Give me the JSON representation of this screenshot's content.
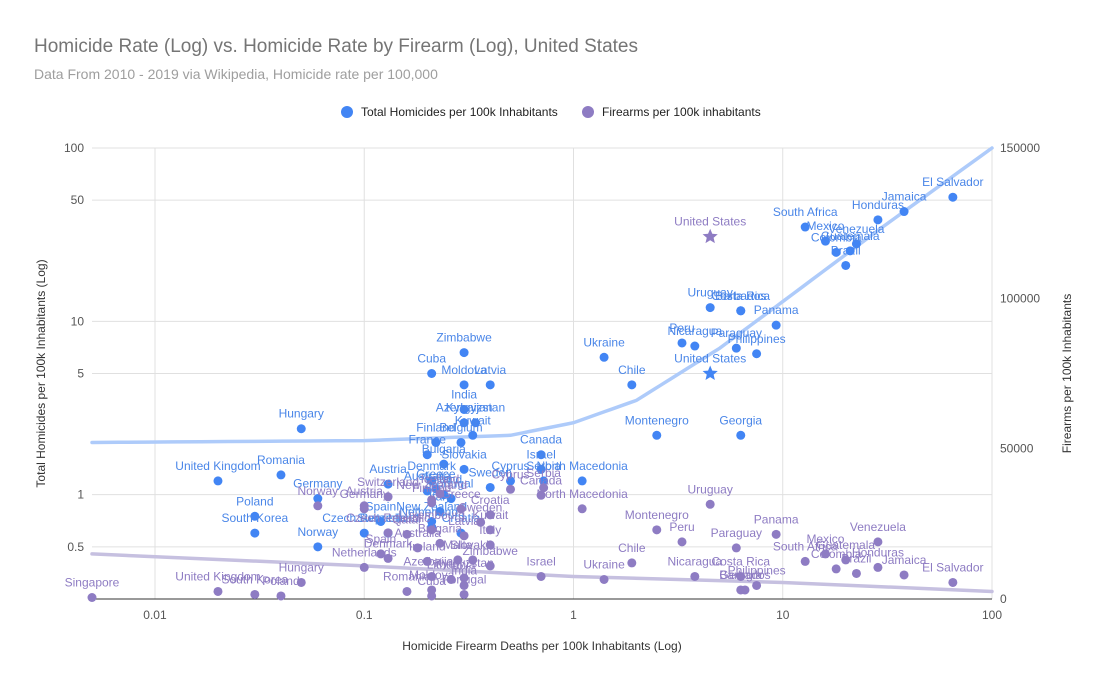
{
  "title": "Homicide Rate (Log) vs. Homicide Rate by Firearm (Log), United States",
  "subtitle": "Data From 2010 - 2019 via Wikipedia, Homicide rate per 100,000",
  "colors": {
    "total": "#4285f4",
    "firearms": "#8e7cc3",
    "label_total": "#4a86e8",
    "label_firearms": "#8e7cc3",
    "trend_total": "#aecbfa",
    "trend_firearms": "#c6c0e0",
    "grid": "#e0e0e0",
    "axis_text": "#555555"
  },
  "chart_data": {
    "type": "scatter",
    "title": "Homicide Rate (Log) vs. Homicide Rate by Firearm (Log), United States",
    "subtitle": "Data From 2010 - 2019 via Wikipedia, Homicide rate per 100,000",
    "xlabel": "Homicide Firearm Deaths per 100k Inhabitants (Log)",
    "ylabel": "Total Homicides per 100k Inhabitants (Log)",
    "y2label": "Firearms per 100k Inhabitants",
    "x_scale": "log",
    "y_scale": "log",
    "xlim": [
      0.005,
      100
    ],
    "ylim": [
      0.25,
      100
    ],
    "y2lim": [
      0,
      150000
    ],
    "x_ticks": [
      "0.01",
      "0.1",
      "1",
      "10",
      "100"
    ],
    "y_ticks": [
      "0.5",
      "1",
      "5",
      "10",
      "50",
      "100"
    ],
    "y2_ticks": [
      "0",
      "50000",
      "100000",
      "150000"
    ],
    "grid": true,
    "legend": "top",
    "series": [
      {
        "name": "Total Homicides per 100k Inhabitants",
        "axis": "left",
        "marker": "circle",
        "points": [
          {
            "label": "El Salvador",
            "x": 65,
            "y": 52
          },
          {
            "label": "Jamaica",
            "x": 38,
            "y": 43
          },
          {
            "label": "Honduras",
            "x": 28.5,
            "y": 38.5
          },
          {
            "label": "Venezuela",
            "x": 22.5,
            "y": 28
          },
          {
            "label": "Brazil",
            "x": 20,
            "y": 21
          },
          {
            "label": "Colombia",
            "x": 18,
            "y": 25
          },
          {
            "label": "Mexico",
            "x": 16,
            "y": 29
          },
          {
            "label": "South Africa",
            "x": 12.8,
            "y": 35
          },
          {
            "label": "Guatemala",
            "x": 21,
            "y": 25.5
          },
          {
            "label": "United States",
            "x": 4.5,
            "y": 5,
            "marker": "star"
          },
          {
            "label": "Uruguay",
            "x": 4.5,
            "y": 12
          },
          {
            "label": "Costa Rica",
            "x": 6.3,
            "y": 11.5
          },
          {
            "label": "Barbados",
            "x": 6.3,
            "y": 11.5
          },
          {
            "label": "Panama",
            "x": 9.3,
            "y": 9.5
          },
          {
            "label": "Peru",
            "x": 3.3,
            "y": 7.5
          },
          {
            "label": "Nicaragua",
            "x": 3.8,
            "y": 7.2
          },
          {
            "label": "Paraguay",
            "x": 6,
            "y": 7
          },
          {
            "label": "Philippines",
            "x": 7.5,
            "y": 6.5
          },
          {
            "label": "Ukraine",
            "x": 1.4,
            "y": 6.2
          },
          {
            "label": "Chile",
            "x": 1.9,
            "y": 4.3
          },
          {
            "label": "Montenegro",
            "x": 2.5,
            "y": 2.2
          },
          {
            "label": "Georgia",
            "x": 6.3,
            "y": 2.2
          },
          {
            "label": "Zimbabwe",
            "x": 0.3,
            "y": 6.6
          },
          {
            "label": "Cuba",
            "x": 0.21,
            "y": 5
          },
          {
            "label": "Moldova",
            "x": 0.3,
            "y": 4.3
          },
          {
            "label": "Latvia",
            "x": 0.4,
            "y": 4.3
          },
          {
            "label": "India",
            "x": 0.3,
            "y": 3.1
          },
          {
            "label": "Hungary",
            "x": 0.05,
            "y": 2.4
          },
          {
            "label": "Azerbaijan",
            "x": 0.3,
            "y": 2.6
          },
          {
            "label": "Kyrgyzstan",
            "x": 0.34,
            "y": 2.6
          },
          {
            "label": "Finland",
            "x": 0.22,
            "y": 2
          },
          {
            "label": "Belgium",
            "x": 0.29,
            "y": 2
          },
          {
            "label": "Kuwait",
            "x": 0.33,
            "y": 2.2
          },
          {
            "label": "Canada",
            "x": 0.7,
            "y": 1.7
          },
          {
            "label": "Israel",
            "x": 0.7,
            "y": 1.4
          },
          {
            "label": "France",
            "x": 0.2,
            "y": 1.7
          },
          {
            "label": "Bulgaria",
            "x": 0.24,
            "y": 1.5
          },
          {
            "label": "Slovakia",
            "x": 0.3,
            "y": 1.4
          },
          {
            "label": "Cyprus",
            "x": 0.5,
            "y": 1.2
          },
          {
            "label": "Serbia",
            "x": 0.72,
            "y": 1.2
          },
          {
            "label": "North Macedonia",
            "x": 1.1,
            "y": 1.2
          },
          {
            "label": "Sweden",
            "x": 0.4,
            "y": 1.1
          },
          {
            "label": "Denmark",
            "x": 0.21,
            "y": 1.2
          },
          {
            "label": "Austria",
            "x": 0.13,
            "y": 1.15
          },
          {
            "label": "Australia",
            "x": 0.2,
            "y": 1.05
          },
          {
            "label": "Greece",
            "x": 0.22,
            "y": 1.08
          },
          {
            "label": "Ireland",
            "x": 0.24,
            "y": 1
          },
          {
            "label": "Portugal",
            "x": 0.26,
            "y": 0.95
          },
          {
            "label": "United Kingdom",
            "x": 0.02,
            "y": 1.2
          },
          {
            "label": "Romania",
            "x": 0.04,
            "y": 1.3
          },
          {
            "label": "Germany",
            "x": 0.06,
            "y": 0.95
          },
          {
            "label": "Poland",
            "x": 0.03,
            "y": 0.75
          },
          {
            "label": "South Korea",
            "x": 0.03,
            "y": 0.6
          },
          {
            "label": "Norway",
            "x": 0.06,
            "y": 0.5
          },
          {
            "label": "Czech Republic",
            "x": 0.1,
            "y": 0.6
          },
          {
            "label": "Switzerland",
            "x": 0.13,
            "y": 0.6
          },
          {
            "label": "New Zealand",
            "x": 0.21,
            "y": 0.7
          },
          {
            "label": "Croatia",
            "x": 0.29,
            "y": 0.6
          },
          {
            "label": "Spain",
            "x": 0.12,
            "y": 0.7
          },
          {
            "label": "Italy",
            "x": 0.23,
            "y": 0.8
          },
          {
            "label": "Netherlands",
            "x": 0.21,
            "y": 0.65
          }
        ]
      },
      {
        "name": "Firearms per 100k inhabitants",
        "axis": "right",
        "marker": "circle",
        "points": [
          {
            "label": "United States",
            "x": 4.5,
            "y": 120500,
            "marker": "star"
          },
          {
            "label": "Uruguay",
            "x": 4.5,
            "y": 31500
          },
          {
            "label": "Panama",
            "x": 9.3,
            "y": 21500
          },
          {
            "label": "Montenegro",
            "x": 2.5,
            "y": 23000
          },
          {
            "label": "Peru",
            "x": 3.3,
            "y": 19000
          },
          {
            "label": "Paraguay",
            "x": 6,
            "y": 17000
          },
          {
            "label": "Chile",
            "x": 1.9,
            "y": 12000
          },
          {
            "label": "Nicaragua",
            "x": 3.8,
            "y": 7500
          },
          {
            "label": "Costa Rica",
            "x": 6.3,
            "y": 7500
          },
          {
            "label": "Georgia",
            "x": 6.3,
            "y": 3000
          },
          {
            "label": "Philippines",
            "x": 7.5,
            "y": 4500
          },
          {
            "label": "Barbados",
            "x": 6.6,
            "y": 3000
          },
          {
            "label": "South Africa",
            "x": 12.8,
            "y": 12500
          },
          {
            "label": "Mexico",
            "x": 16,
            "y": 15000
          },
          {
            "label": "Colombia",
            "x": 18,
            "y": 10000
          },
          {
            "label": "Guatemala",
            "x": 20,
            "y": 13000
          },
          {
            "label": "Brazil",
            "x": 22.5,
            "y": 8500
          },
          {
            "label": "Honduras",
            "x": 28.5,
            "y": 10500
          },
          {
            "label": "Venezuela",
            "x": 28.5,
            "y": 19000
          },
          {
            "label": "Jamaica",
            "x": 38,
            "y": 8000
          },
          {
            "label": "El Salvador",
            "x": 65,
            "y": 5500
          },
          {
            "label": "North Macedonia",
            "x": 1.1,
            "y": 30000
          },
          {
            "label": "Canada",
            "x": 0.7,
            "y": 34500
          },
          {
            "label": "Serbia",
            "x": 0.72,
            "y": 37000
          },
          {
            "label": "Cyprus",
            "x": 0.5,
            "y": 36500
          },
          {
            "label": "Israel",
            "x": 0.7,
            "y": 7500
          },
          {
            "label": "Ukraine",
            "x": 1.4,
            "y": 6500
          },
          {
            "label": "Kuwait",
            "x": 0.4,
            "y": 23000
          },
          {
            "label": "Sweden",
            "x": 0.36,
            "y": 25500
          },
          {
            "label": "Croatia",
            "x": 0.4,
            "y": 28000
          },
          {
            "label": "Latvia",
            "x": 0.3,
            "y": 21000
          },
          {
            "label": "Greece",
            "x": 0.29,
            "y": 30000
          },
          {
            "label": "Switzerland",
            "x": 0.13,
            "y": 34000
          },
          {
            "label": "Finland",
            "x": 0.21,
            "y": 32000
          },
          {
            "label": "Iceland",
            "x": 0.23,
            "y": 35000
          },
          {
            "label": "New Zealand",
            "x": 0.21,
            "y": 33000
          },
          {
            "label": "Austria",
            "x": 0.1,
            "y": 31000
          },
          {
            "label": "Germany",
            "x": 0.1,
            "y": 30000
          },
          {
            "label": "Norway",
            "x": 0.06,
            "y": 31000
          },
          {
            "label": "Luxembourg",
            "x": 0.21,
            "y": 23000
          },
          {
            "label": "Czech Republic",
            "x": 0.13,
            "y": 22000
          },
          {
            "label": "Qatar",
            "x": 0.16,
            "y": 21500
          },
          {
            "label": "Australia",
            "x": 0.18,
            "y": 17000
          },
          {
            "label": "Bulgaria",
            "x": 0.23,
            "y": 18500
          },
          {
            "label": "Italy",
            "x": 0.4,
            "y": 18000
          },
          {
            "label": "Spain",
            "x": 0.12,
            "y": 15000
          },
          {
            "label": "Denmark",
            "x": 0.13,
            "y": 13500
          },
          {
            "label": "Ireland",
            "x": 0.2,
            "y": 12500
          },
          {
            "label": "Malta",
            "x": 0.28,
            "y": 13000
          },
          {
            "label": "Slovakia",
            "x": 0.33,
            "y": 13000
          },
          {
            "label": "Zimbabwe",
            "x": 0.4,
            "y": 11000
          },
          {
            "label": "Netherlands",
            "x": 0.1,
            "y": 10500
          },
          {
            "label": "Azerbaijan",
            "x": 0.21,
            "y": 7500
          },
          {
            "label": "Kyrgyzstan",
            "x": 0.3,
            "y": 7000
          },
          {
            "label": "India",
            "x": 0.3,
            "y": 4500
          },
          {
            "label": "Moldova",
            "x": 0.21,
            "y": 3000
          },
          {
            "label": "Lithuania",
            "x": 0.26,
            "y": 6500
          },
          {
            "label": "Cuba",
            "x": 0.21,
            "y": 1000
          },
          {
            "label": "Romania",
            "x": 0.16,
            "y": 2500
          },
          {
            "label": "Portugal",
            "x": 0.3,
            "y": 1500
          },
          {
            "label": "Hungary",
            "x": 0.05,
            "y": 5500
          },
          {
            "label": "United Kingdom",
            "x": 0.02,
            "y": 2500
          },
          {
            "label": "South Korea",
            "x": 0.03,
            "y": 1500
          },
          {
            "label": "Poland",
            "x": 0.04,
            "y": 1000
          },
          {
            "label": "Singapore",
            "x": 0.005,
            "y": 500
          }
        ]
      }
    ],
    "trendlines": [
      {
        "series": "Total Homicides per 100k Inhabitants",
        "type": "linear-on-log-x",
        "samples": [
          [
            0.005,
            2.0
          ],
          [
            0.1,
            2.05
          ],
          [
            0.5,
            2.2
          ],
          [
            1,
            2.6
          ],
          [
            2,
            3.5
          ],
          [
            5,
            7
          ],
          [
            10,
            13
          ],
          [
            30,
            35
          ],
          [
            100,
            100
          ]
        ]
      },
      {
        "series": "Firearms per 100k inhabitants",
        "type": "linear",
        "samples": [
          [
            0.005,
            15000
          ],
          [
            0.1,
            11000
          ],
          [
            1,
            7500
          ],
          [
            10,
            5500
          ],
          [
            100,
            2500
          ]
        ]
      }
    ]
  }
}
